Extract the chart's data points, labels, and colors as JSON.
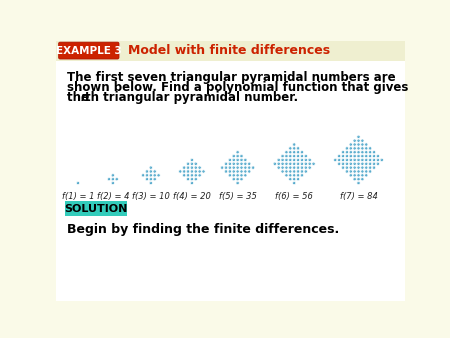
{
  "bg_color": "#fafae8",
  "header_bg": "#efefd0",
  "example_box_color": "#cc2200",
  "example_text": "EXAMPLE 3",
  "title_text": "Model with finite differences",
  "title_color": "#cc2200",
  "body_line1": "The first seven triangular pyramidal numbers are",
  "body_line2": "shown below. Find a polynomial function that gives",
  "body_line3_pre": "the ",
  "body_line3_italic": "n",
  "body_line3_post": "th triangular pyramidal number.",
  "solution_box_color": "#33ccbb",
  "solution_text": "SOLUTION",
  "begin_text": "Begin by finding the finite differences.",
  "function_labels": [
    "f(1) = 1",
    "f(2) = 4",
    "f(3) = 10",
    "f(4) = 20",
    "f(5) = 35",
    "f(6) = 56",
    "f(7) = 84"
  ],
  "values": [
    1,
    4,
    10,
    20,
    35,
    56,
    84
  ],
  "dot_color": "#55aacc",
  "dot_edge_color": "#88ccee",
  "header_line_color": "#cccc99"
}
